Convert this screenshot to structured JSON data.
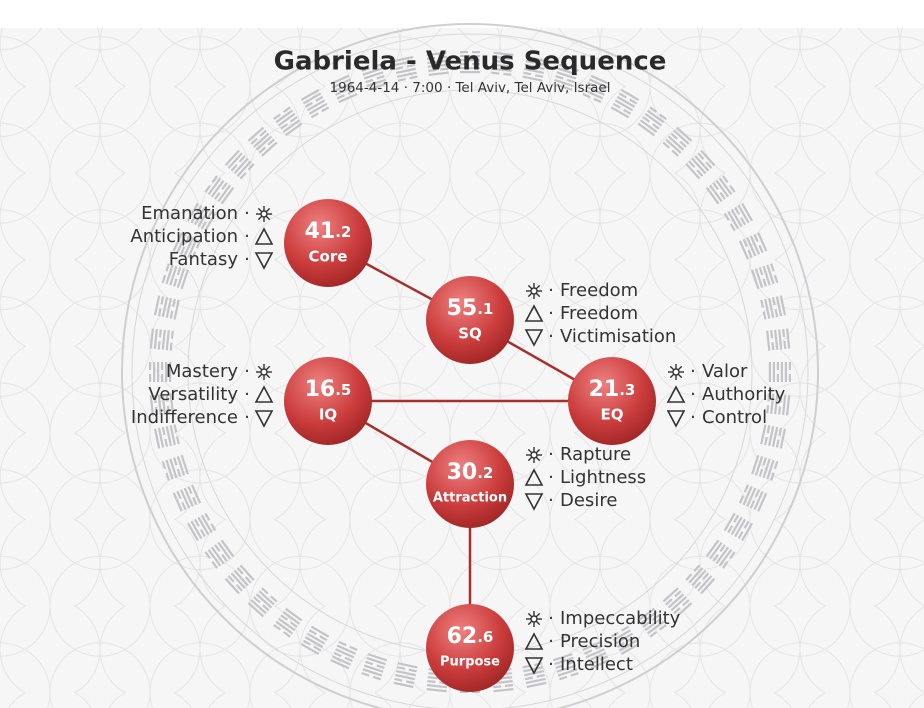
{
  "header": {
    "title": "Gabriela - Venus Sequence",
    "subtitle": "1964-4-14 · 7:00 · Tel Aviv, Tel Aviv, Israel"
  },
  "separator": "·",
  "nodes": [
    {
      "gate": "41",
      "line": ".2",
      "label": "Core",
      "keywords": [
        "Emanation",
        "Anticipation",
        "Fantasy"
      ]
    },
    {
      "gate": "55",
      "line": ".1",
      "label": "SQ",
      "keywords": [
        "Freedom",
        "Freedom",
        "Victimisation"
      ]
    },
    {
      "gate": "16",
      "line": ".5",
      "label": "IQ",
      "keywords": [
        "Mastery",
        "Versatility",
        "Indifference"
      ]
    },
    {
      "gate": "21",
      "line": ".3",
      "label": "EQ",
      "keywords": [
        "Valor",
        "Authority",
        "Control"
      ]
    },
    {
      "gate": "30",
      "line": ".2",
      "label": "Attraction",
      "keywords": [
        "Rapture",
        "Lightness",
        "Desire"
      ]
    },
    {
      "gate": "62",
      "line": ".6",
      "label": "Purpose",
      "keywords": [
        "Impeccability",
        "Precision",
        "Intellect"
      ]
    }
  ]
}
